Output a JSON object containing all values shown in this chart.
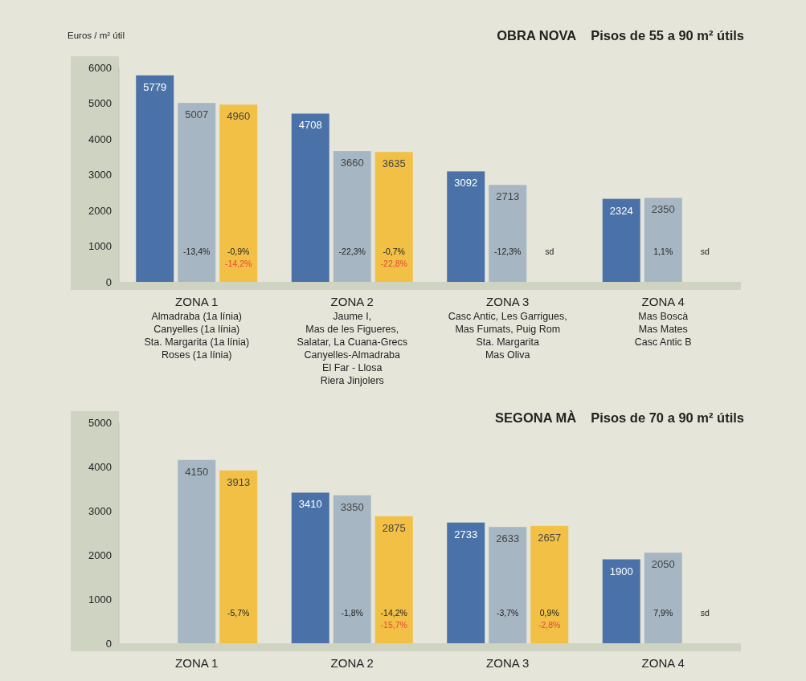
{
  "chart_data": [
    {
      "type": "bar",
      "title": "OBRA NOVA",
      "subtitle": "Pisos de 55 a 90 m² útils",
      "ylabel": "Euros / m² útil",
      "categories": [
        "ZONA 1\nAlmadraba (1a línia)\nCanyelles (1a línia)\nSta. Margarita (1a línia)\nRoses (1a línia)",
        "ZONA 2\nJaume I,\nMas de les Figueres,\nSalatar, La Cuana-Grecs\nCanyelles-Almadraba\nEl Far - Llosa\nRiera Jinjolers",
        "ZONA 3\nCasc Antic, Les Garrigues,\nMas Fumats, Puig Rom\nSta. Margarita\nMas Oliva",
        "ZONA 4\nMas Boscà\nMas Mates\nCasc Antic B"
      ],
      "series": [
        {
          "color": "#4a72a8",
          "values": [
            5779,
            4708,
            3092,
            2324
          ]
        },
        {
          "color": "#a7b6c3",
          "values": [
            5007,
            3660,
            2713,
            2350
          ]
        },
        {
          "color": "#f2c045",
          "values": [
            4960,
            3635,
            null,
            null
          ]
        }
      ],
      "ylim": [
        0,
        6000
      ],
      "yticks": [
        0,
        1000,
        2000,
        3000,
        4000,
        5000,
        6000
      ],
      "grid": false,
      "data_labels": true,
      "annotations": [
        "-13,4%",
        "-0,9%",
        "-14,2%",
        "-22,3%",
        "-0,7%",
        "-22,8%",
        "-12,3%",
        "sd",
        "1,1%",
        "sd"
      ]
    },
    {
      "type": "bar",
      "title": "SEGONA MÀ",
      "subtitle": "Pisos de 70 a 90 m² útils",
      "categories": [
        "ZONA 1",
        "ZONA 2",
        "ZONA 3",
        "ZONA 4"
      ],
      "series": [
        {
          "color": "#4a72a8",
          "values": [
            null,
            3410,
            2733,
            1900
          ]
        },
        {
          "color": "#a7b6c3",
          "values": [
            4150,
            3350,
            2633,
            2050
          ]
        },
        {
          "color": "#f2c045",
          "values": [
            3913,
            2875,
            2657,
            null
          ]
        }
      ],
      "ylim": [
        0,
        5000
      ],
      "yticks": [
        0,
        1000,
        2000,
        3000,
        4000,
        5000
      ],
      "grid": false,
      "data_labels": true,
      "annotations": [
        "-5,7%",
        "-1,8%",
        "-14,2%",
        "-15,7%",
        "-3,7%",
        "0,9%",
        "-2,8%",
        "7,9%",
        "sd"
      ]
    }
  ]
}
